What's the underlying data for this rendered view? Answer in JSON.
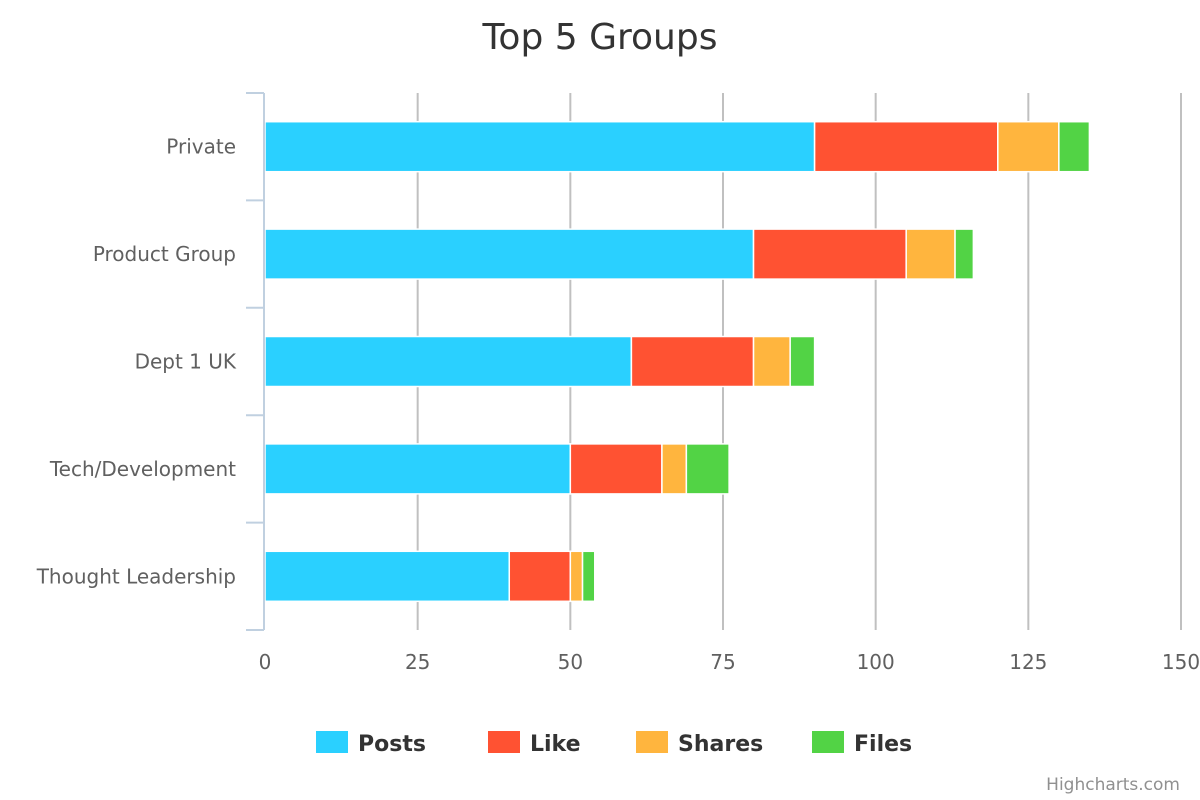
{
  "chart_data": {
    "type": "bar",
    "orientation": "horizontal",
    "stacked": true,
    "title": "Top 5 Groups",
    "categories": [
      "Private",
      "Product Group",
      "Dept 1 UK",
      "Tech/Development",
      "Thought Leadership"
    ],
    "series": [
      {
        "name": "Posts",
        "color": "#2ad0ff",
        "values": [
          90,
          80,
          60,
          50,
          40
        ]
      },
      {
        "name": "Like",
        "color": "#ff5232",
        "values": [
          30,
          25,
          20,
          15,
          10
        ]
      },
      {
        "name": "Shares",
        "color": "#ffb53e",
        "values": [
          10,
          8,
          6,
          4,
          2
        ]
      },
      {
        "name": "Files",
        "color": "#52d345",
        "values": [
          5,
          3,
          4,
          7,
          2
        ]
      }
    ],
    "xlim": [
      0,
      150
    ],
    "ticks": [
      "0",
      "25",
      "50",
      "75",
      "100",
      "125",
      "150"
    ],
    "grid": true,
    "legend_position": "bottom-center",
    "xlabel": "",
    "ylabel": ""
  },
  "credits": "Highcharts.com"
}
